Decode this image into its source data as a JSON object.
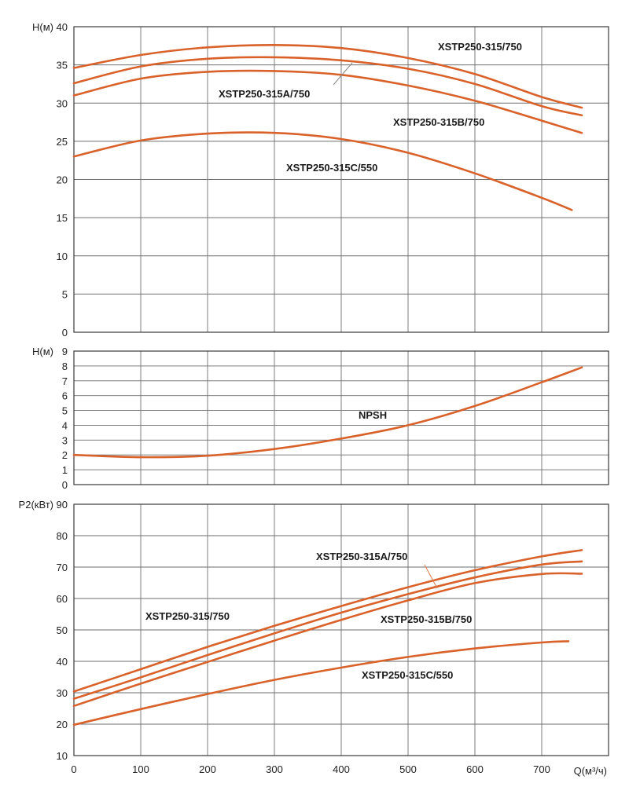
{
  "chart_data": [
    {
      "type": "line",
      "id": "head",
      "ylabel": "H(м)",
      "xlim": [
        0,
        800
      ],
      "ylim": [
        0,
        40
      ],
      "yticks": [
        0,
        5,
        10,
        15,
        20,
        25,
        30,
        35,
        40
      ],
      "grid": true,
      "color": "#d9622b",
      "series": [
        {
          "name": "XSTP250-315/750",
          "x": [
            0,
            100,
            200,
            300,
            400,
            500,
            600,
            700,
            760
          ],
          "y": [
            34.6,
            36.3,
            37.3,
            37.6,
            37.2,
            35.9,
            33.8,
            30.8,
            29.4
          ]
        },
        {
          "name": "XSTP250-315A/750",
          "x": [
            0,
            100,
            200,
            300,
            400,
            500,
            600,
            700,
            760
          ],
          "y": [
            32.6,
            34.8,
            35.8,
            36.0,
            35.6,
            34.5,
            32.5,
            29.6,
            28.4
          ]
        },
        {
          "name": "XSTP250-315B/750",
          "x": [
            0,
            100,
            200,
            300,
            400,
            500,
            600,
            700,
            760
          ],
          "y": [
            31.0,
            33.2,
            34.1,
            34.2,
            33.7,
            32.3,
            30.3,
            27.7,
            26.1
          ]
        },
        {
          "name": "XSTP250-315C/550",
          "x": [
            0,
            100,
            200,
            300,
            400,
            500,
            600,
            700,
            745
          ],
          "y": [
            23.0,
            25.1,
            26.0,
            26.1,
            25.3,
            23.5,
            20.8,
            17.6,
            16.0
          ]
        }
      ],
      "annotations": [
        "XSTP250-315/750",
        "XSTP250-315A/750",
        "XSTP250-315B/750",
        "XSTP250-315C/550"
      ]
    },
    {
      "type": "line",
      "id": "npsh",
      "ylabel": "H(м)",
      "xlim": [
        0,
        800
      ],
      "ylim": [
        0,
        9
      ],
      "yticks": [
        0,
        1,
        2,
        3,
        4,
        5,
        6,
        7,
        8,
        9
      ],
      "grid": true,
      "color": "#d9622b",
      "series": [
        {
          "name": "NPSH",
          "x": [
            0,
            100,
            200,
            300,
            400,
            500,
            600,
            700,
            760
          ],
          "y": [
            2.0,
            1.85,
            1.95,
            2.4,
            3.1,
            4.0,
            5.3,
            6.9,
            7.9
          ]
        }
      ],
      "annotations": [
        "NPSH"
      ]
    },
    {
      "type": "line",
      "id": "power",
      "ylabel": "P2(кВт)",
      "xlabel": "Q(м³/ч)",
      "xlim": [
        0,
        800
      ],
      "ylim": [
        10,
        90
      ],
      "yticks": [
        10,
        20,
        30,
        40,
        50,
        60,
        70,
        80,
        90
      ],
      "xticks": [
        0,
        100,
        200,
        300,
        400,
        500,
        600,
        700
      ],
      "grid": true,
      "color": "#d9622b",
      "series": [
        {
          "name": "XSTP250-315/750",
          "x": [
            0,
            100,
            200,
            300,
            400,
            500,
            600,
            700,
            760
          ],
          "y": [
            30.4,
            37.5,
            44.6,
            51.3,
            57.6,
            63.6,
            69.0,
            73.4,
            75.4
          ]
        },
        {
          "name": "XSTP250-315A/750",
          "x": [
            0,
            100,
            200,
            300,
            400,
            500,
            600,
            700,
            760
          ],
          "y": [
            28.1,
            34.9,
            42.0,
            48.9,
            55.5,
            61.4,
            66.7,
            70.8,
            71.8
          ]
        },
        {
          "name": "XSTP250-315B/750",
          "x": [
            0,
            100,
            200,
            300,
            400,
            500,
            600,
            700,
            760
          ],
          "y": [
            25.8,
            32.9,
            39.8,
            46.6,
            53.2,
            59.4,
            64.9,
            67.8,
            67.9
          ]
        },
        {
          "name": "XSTP250-315C/550",
          "x": [
            0,
            100,
            200,
            300,
            400,
            500,
            600,
            700,
            740
          ],
          "y": [
            19.8,
            24.8,
            29.6,
            34.1,
            38.0,
            41.4,
            44.1,
            46.0,
            46.4
          ]
        }
      ],
      "annotations": [
        "XSTP250-315A/750",
        "XSTP250-315/750",
        "XSTP250-315B/750",
        "XSTP250-315C/550"
      ]
    }
  ]
}
